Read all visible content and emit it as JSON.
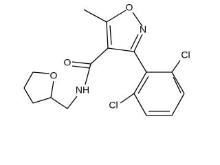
{
  "atoms": {
    "ring_oxygen": "O",
    "ring_nitrogen": "N",
    "carbonyl_oxygen": "O",
    "amide_nitrogen": "NH",
    "chlorine_top": "Cl",
    "chlorine_bottom": "Cl",
    "thf_oxygen": "O"
  }
}
